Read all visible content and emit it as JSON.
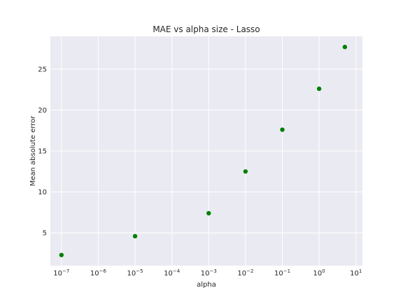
{
  "chart_data": {
    "type": "scatter",
    "title": "MAE vs alpha size - Lasso",
    "xlabel": "alpha",
    "ylabel": "Mean absolute error",
    "xscale": "log",
    "xlim": [
      5e-08,
      15
    ],
    "ylim": [
      1.0,
      29.0
    ],
    "xticks": [
      {
        "value": 1e-07,
        "base": "10",
        "exp": "−7"
      },
      {
        "value": 1e-06,
        "base": "10",
        "exp": "−6"
      },
      {
        "value": 1e-05,
        "base": "10",
        "exp": "−5"
      },
      {
        "value": 0.0001,
        "base": "10",
        "exp": "−4"
      },
      {
        "value": 0.001,
        "base": "10",
        "exp": "−3"
      },
      {
        "value": 0.01,
        "base": "10",
        "exp": "−2"
      },
      {
        "value": 0.1,
        "base": "10",
        "exp": "−1"
      },
      {
        "value": 1,
        "base": "10",
        "exp": "0"
      },
      {
        "value": 10,
        "base": "10",
        "exp": "1"
      }
    ],
    "yticks": [
      {
        "value": 5,
        "label": "5"
      },
      {
        "value": 10,
        "label": "10"
      },
      {
        "value": 15,
        "label": "15"
      },
      {
        "value": 20,
        "label": "20"
      },
      {
        "value": 25,
        "label": "25"
      }
    ],
    "grid": true,
    "points": [
      {
        "x": 1e-07,
        "y": 2.3
      },
      {
        "x": 1e-05,
        "y": 4.6
      },
      {
        "x": 0.001,
        "y": 7.4
      },
      {
        "x": 0.01,
        "y": 12.5
      },
      {
        "x": 0.1,
        "y": 17.6
      },
      {
        "x": 1,
        "y": 22.6
      },
      {
        "x": 5,
        "y": 27.7
      }
    ],
    "colors": {
      "point": "#008000",
      "plot_bg": "#eaeaf2",
      "grid": "#ffffff",
      "text": "#262626"
    }
  }
}
